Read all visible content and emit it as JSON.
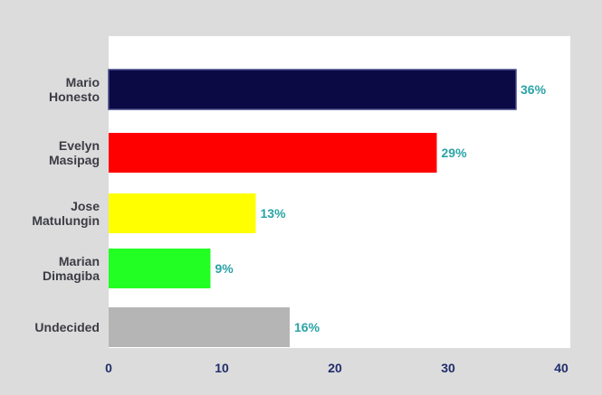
{
  "chart_data": {
    "type": "bar",
    "orientation": "horizontal",
    "categories": [
      [
        "Mario",
        "Honesto"
      ],
      [
        "Evelyn",
        "Masipag"
      ],
      [
        "Jose",
        "Matulungin"
      ],
      [
        "Marian",
        "Dimagiba"
      ],
      [
        "Undecided"
      ]
    ],
    "values": [
      36,
      29,
      13,
      9,
      16
    ],
    "value_labels": [
      "36%",
      "29%",
      "13%",
      "9%",
      "16%"
    ],
    "bar_colors": [
      "#0b0a45",
      "#ff0000",
      "#ffff00",
      "#22ff22",
      "#b5b5b5"
    ],
    "xlim": [
      0,
      40
    ],
    "xticks": [
      "0",
      "10",
      "20",
      "30",
      "40"
    ],
    "grid": false,
    "legend": "none"
  }
}
